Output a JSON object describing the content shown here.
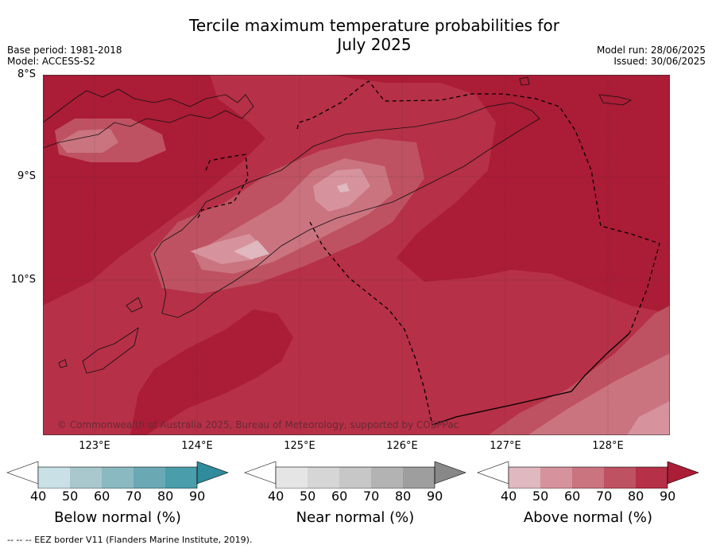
{
  "title_line1": "Tercile maximum temperature probabilities for",
  "title_line2": "July 2025",
  "meta": {
    "base_period": "Base period: 1981-2018",
    "model": "Model: ACCESS-S2",
    "model_run": "Model run: 28/06/2025",
    "issued": "Issued: 30/06/2025"
  },
  "lat_labels": [
    "8°S",
    "9°S",
    "10°S"
  ],
  "lon_labels": [
    "123°E",
    "124°E",
    "125°E",
    "126°E",
    "127°E",
    "128°E"
  ],
  "copyright": "© Commonwealth of Australia 2025, Bureau of Meteorology, supported by COSPPac",
  "colorbars": [
    {
      "label": "Below normal (%)",
      "ticks": [
        "40",
        "50",
        "60",
        "70",
        "80",
        "90"
      ],
      "colors": [
        "#c8e0e6",
        "#a8c8cd",
        "#8bb9c2",
        "#6aa8b4",
        "#4a9dab",
        "#2e8c9c"
      ]
    },
    {
      "label": "Near normal (%)",
      "ticks": [
        "40",
        "50",
        "60",
        "70",
        "80",
        "90"
      ],
      "colors": [
        "#e5e5e5",
        "#d6d6d6",
        "#c7c7c7",
        "#b3b3b3",
        "#9e9e9e",
        "#888888"
      ]
    },
    {
      "label": "Above normal (%)",
      "ticks": [
        "40",
        "50",
        "60",
        "70",
        "80",
        "90"
      ],
      "colors": [
        "#e0b8bf",
        "#d6939d",
        "#ca7480",
        "#be5262",
        "#b63047",
        "#ab1c36"
      ]
    }
  ],
  "footnote": "--  --  -- EEZ border V11 (Flanders Marine Institute, 2019)."
}
